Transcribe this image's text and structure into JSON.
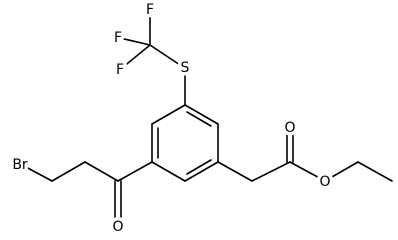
{
  "atoms": [
    {
      "label": "F"
    },
    {
      "label": "F"
    },
    {
      "label": "F"
    },
    {
      "label": "S"
    },
    {
      "label": "O"
    },
    {
      "label": "O"
    },
    {
      "label": "O"
    },
    {
      "label": "Br"
    }
  ]
}
